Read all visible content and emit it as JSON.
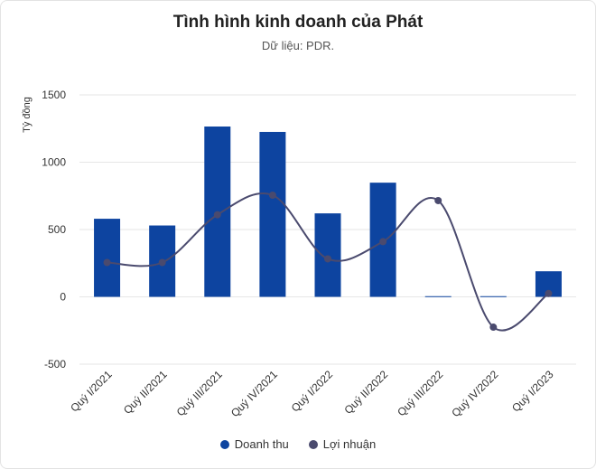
{
  "chart_data": {
    "type": "bar",
    "title": "Tình hình kinh doanh của Phát",
    "subtitle": "Dữ liệu: PDR.",
    "ylabel": "Tỷ đồng",
    "xlabel": "",
    "ylim": [
      -500,
      1500
    ],
    "yticks": [
      1500,
      1000,
      500,
      0,
      -500
    ],
    "categories": [
      "Quý I/2021",
      "Quý II/2021",
      "Quý III/2021",
      "Quý IV/2021",
      "Quý I/2022",
      "Quý II/2022",
      "Quý III/2022",
      "Quý IV/2022",
      "Quý I/2023"
    ],
    "series": [
      {
        "name": "Doanh thu",
        "type": "bar",
        "color": "#0d44a0",
        "values": [
          580,
          530,
          1265,
          1225,
          620,
          848,
          5,
          5,
          190
        ]
      },
      {
        "name": "Lợi nhuận",
        "type": "line",
        "color": "#4a4a6e",
        "values": [
          255,
          255,
          610,
          755,
          282,
          410,
          715,
          -225,
          25
        ]
      }
    ],
    "grid": true,
    "legend": "bottom"
  }
}
